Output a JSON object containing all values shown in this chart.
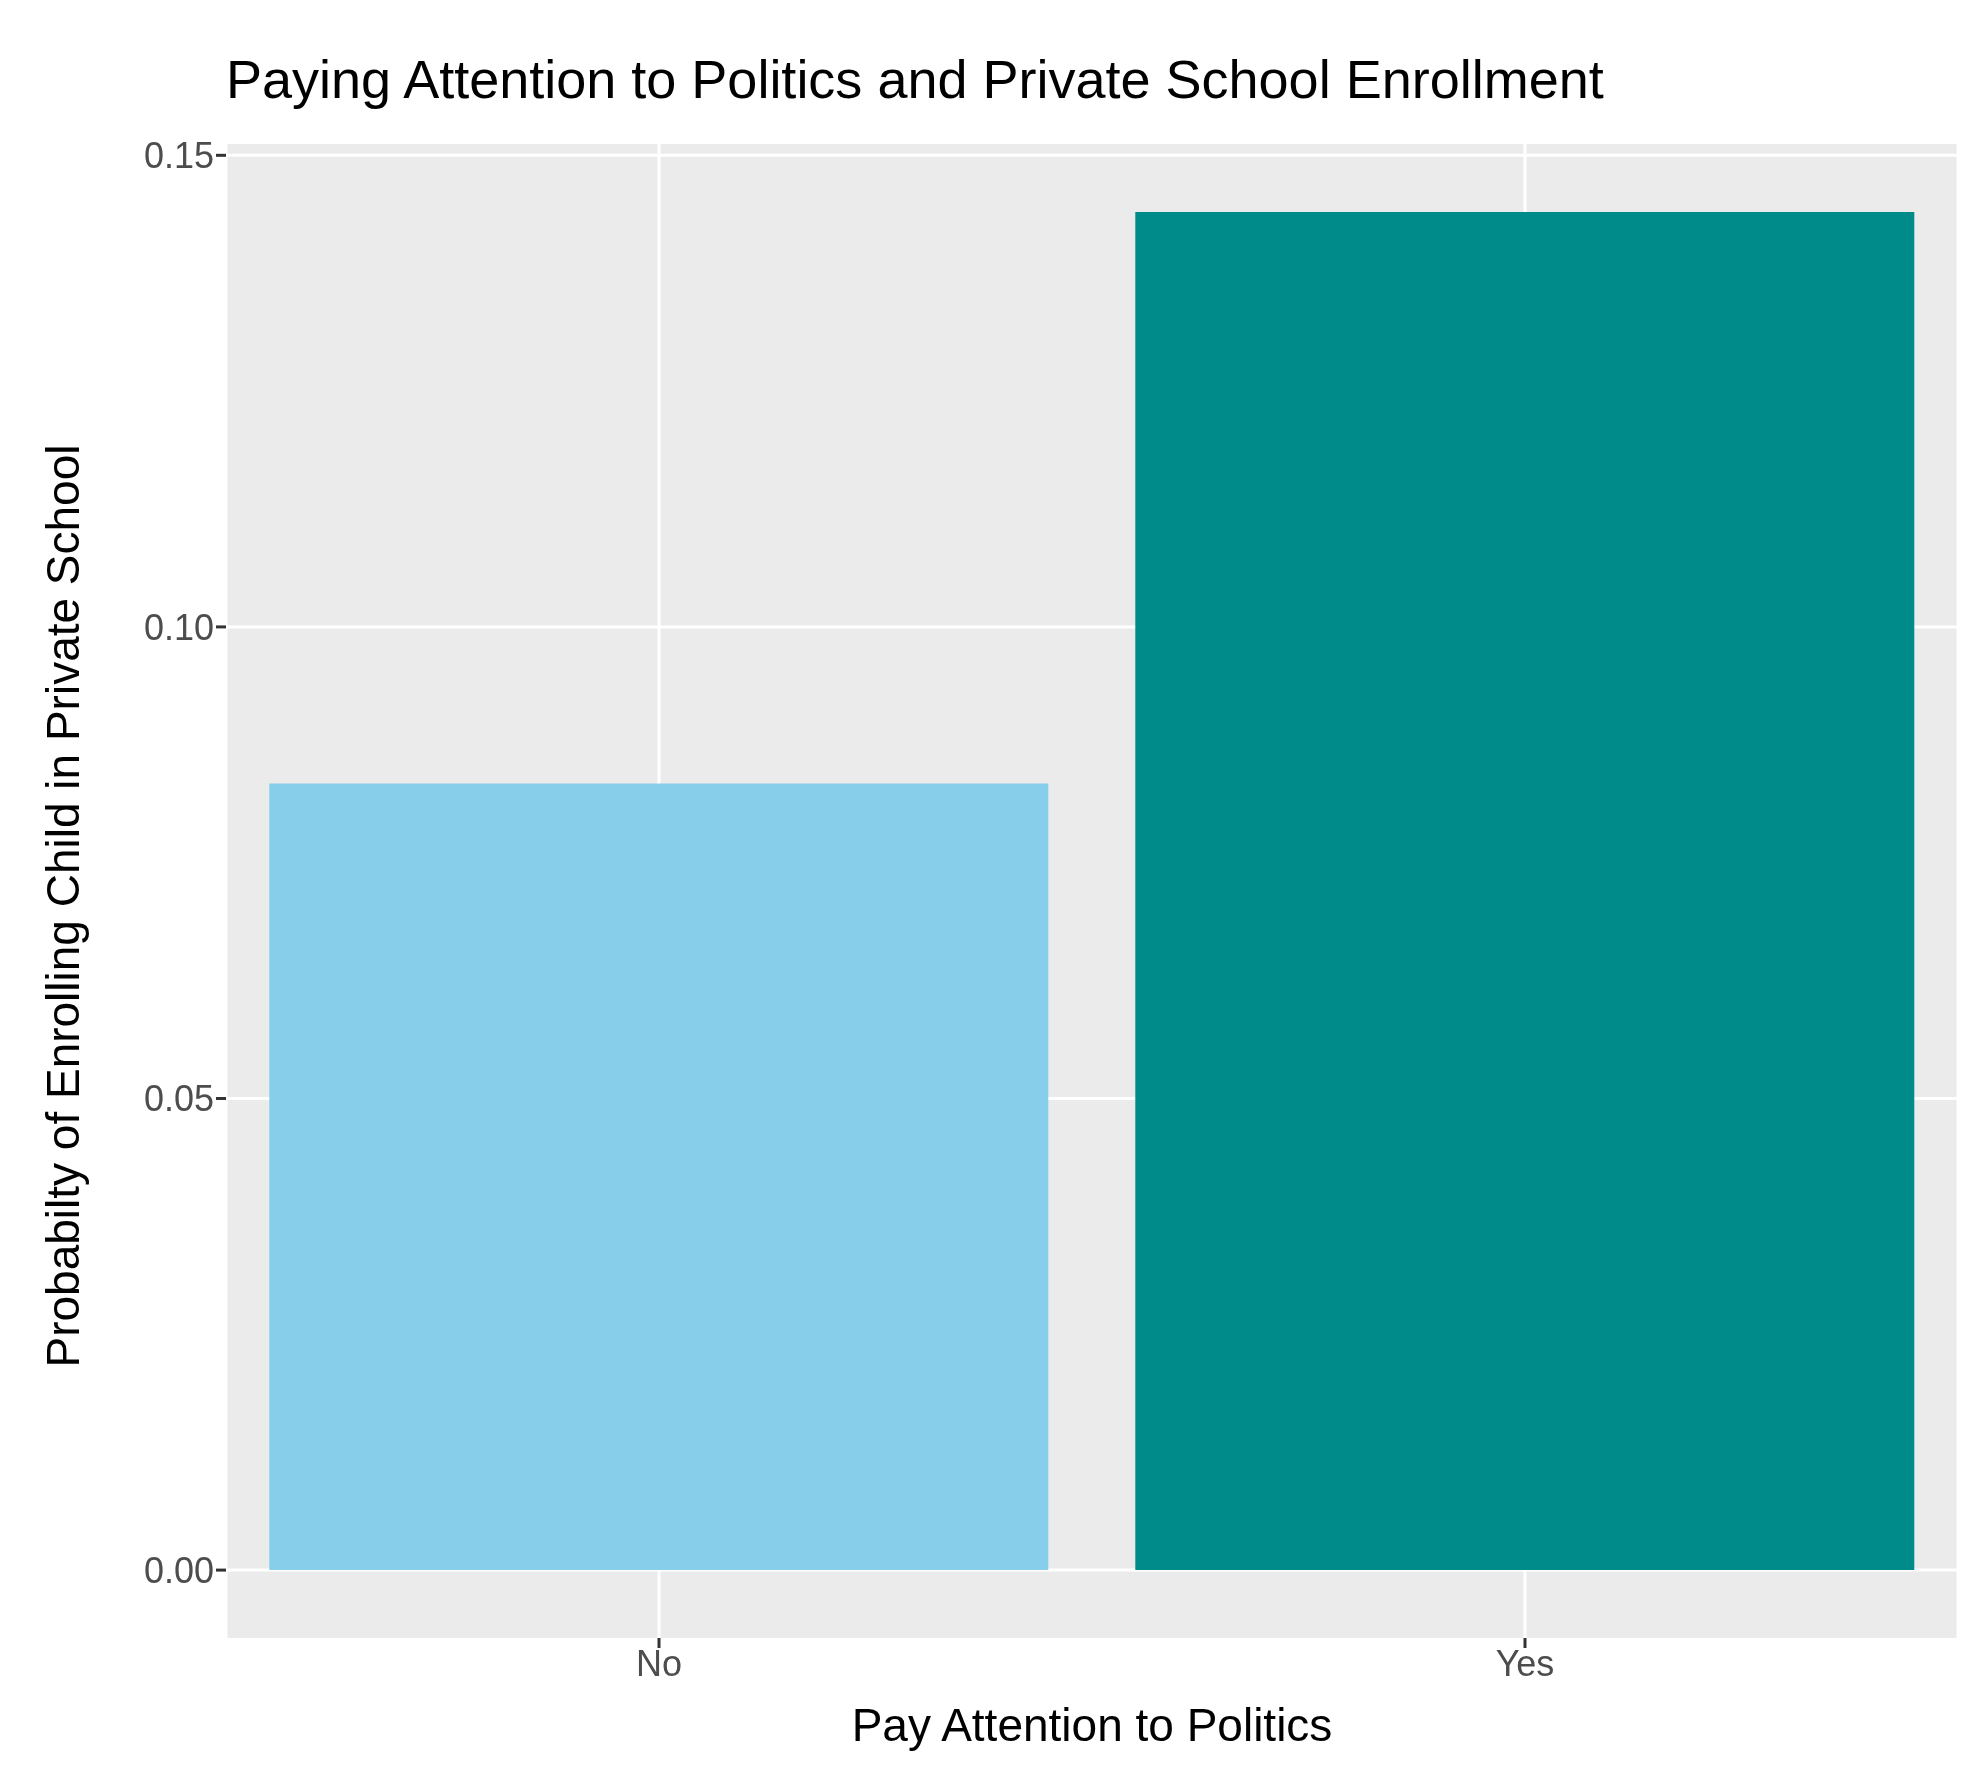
{
  "chart_data": {
    "type": "bar",
    "title": "Paying Attention to Politics and Private School Enrollment",
    "xlabel": "Pay Attention to Politics",
    "ylabel": "Probabilty of Enrolling Child in Private School",
    "categories": [
      "No",
      "Yes"
    ],
    "values": [
      0.0834,
      0.144
    ],
    "colors": [
      "#87ceeb",
      "#008b8b"
    ],
    "ylim": [
      -0.0072,
      0.1512
    ],
    "yticks": [
      {
        "value": 0,
        "label": "0.00"
      },
      {
        "value": 0.05,
        "label": "0.05"
      },
      {
        "value": 0.1,
        "label": "0.10"
      },
      {
        "value": 0.15,
        "label": "0.15"
      }
    ],
    "grid": true,
    "legend": false
  }
}
